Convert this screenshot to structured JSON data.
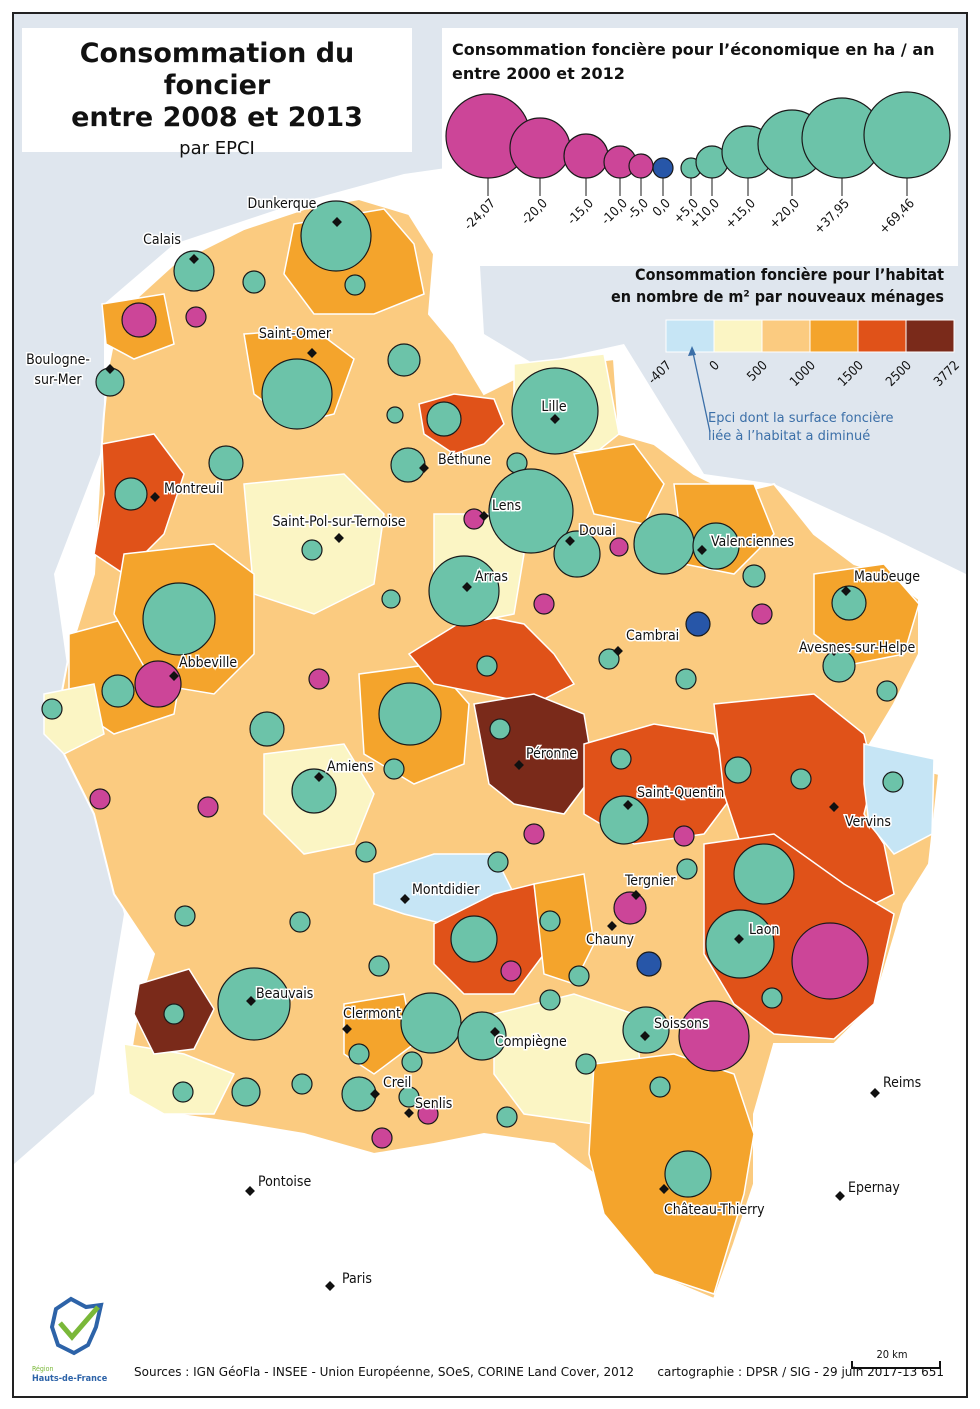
{
  "title": {
    "line1": "Consommation du foncier",
    "line2": "entre 2008 et 2013",
    "line3": "par EPCI"
  },
  "legend_economic": {
    "title_line1": "Consommation foncière pour l’économique en ha / an",
    "title_line2": "entre 2000 et 2012",
    "classes": [
      {
        "label": "-24,07",
        "type": "negative"
      },
      {
        "label": "-20,0",
        "type": "negative"
      },
      {
        "label": "-15,0",
        "type": "negative"
      },
      {
        "label": "-10,0",
        "type": "negative"
      },
      {
        "label": "-5,0",
        "type": "negative"
      },
      {
        "label": "0,0",
        "type": "zero"
      },
      {
        "label": "+5,0",
        "type": "positive"
      },
      {
        "label": "+10,0",
        "type": "positive"
      },
      {
        "label": "+15,0",
        "type": "positive"
      },
      {
        "label": "+20,0",
        "type": "positive"
      },
      {
        "label": "+37,95",
        "type": "positive"
      },
      {
        "label": "+69,46",
        "type": "positive"
      }
    ]
  },
  "legend_habitat": {
    "title_line1": "Consommation foncière pour l’habitat",
    "title_line2": "en nombre de m² par nouveaux ménages",
    "breaks": [
      "-407",
      "0",
      "500",
      "1000",
      "1500",
      "2500",
      "3772"
    ],
    "classes": [
      {
        "color": "#c6e5f5"
      },
      {
        "color": "#fbf5c4"
      },
      {
        "color": "#fbcb80"
      },
      {
        "color": "#f4a42c"
      },
      {
        "color": "#e05219"
      },
      {
        "color": "#7a2a1a"
      }
    ],
    "note_line1": "Epci dont la surface foncière",
    "note_line2": "liée à l’habitat a diminué"
  },
  "colors": {
    "positive": "#6cc3a9",
    "negative": "#cc4598",
    "zero": "#2756a8",
    "water": "#dfe6ee",
    "outside": "#ffffff",
    "note": "#3b6fa8"
  },
  "cities": [
    {
      "name": "Dunkerque"
    },
    {
      "name": "Calais"
    },
    {
      "name": "Saint-Omer"
    },
    {
      "name": "Boulogne-"
    },
    {
      "name": "sur-Mer"
    },
    {
      "name": "Lille"
    },
    {
      "name": "Béthune"
    },
    {
      "name": "Montreuil"
    },
    {
      "name": "Lens"
    },
    {
      "name": "Saint-Pol-sur-Ternoise"
    },
    {
      "name": "Douai"
    },
    {
      "name": "Valenciennes"
    },
    {
      "name": "Arras"
    },
    {
      "name": "Maubeuge"
    },
    {
      "name": "Cambrai"
    },
    {
      "name": "Avesnes-sur-Helpe"
    },
    {
      "name": "Abbeville"
    },
    {
      "name": "Péronne"
    },
    {
      "name": "Amiens"
    },
    {
      "name": "Saint-Quentin"
    },
    {
      "name": "Vervins"
    },
    {
      "name": "Montdidier"
    },
    {
      "name": "Tergnier"
    },
    {
      "name": "Chauny"
    },
    {
      "name": "Laon"
    },
    {
      "name": "Beauvais"
    },
    {
      "name": "Clermont"
    },
    {
      "name": "Soissons"
    },
    {
      "name": "Compiègne"
    },
    {
      "name": "Creil"
    },
    {
      "name": "Senlis"
    },
    {
      "name": "Reims"
    },
    {
      "name": "Pontoise"
    },
    {
      "name": "Epernay"
    },
    {
      "name": "Château-Thierry"
    },
    {
      "name": "Paris"
    }
  ],
  "scale_bar": {
    "label": "20 km"
  },
  "logo": {
    "line1": "Région",
    "line2": "Hauts-de-France"
  },
  "sources": "Sources : IGN GéoFla - INSEE - Union Européenne, SOeS, CORINE Land Cover, 2012",
  "credit": "cartographie :  DPSR / SIG - 29 juin 2017-13 651"
}
